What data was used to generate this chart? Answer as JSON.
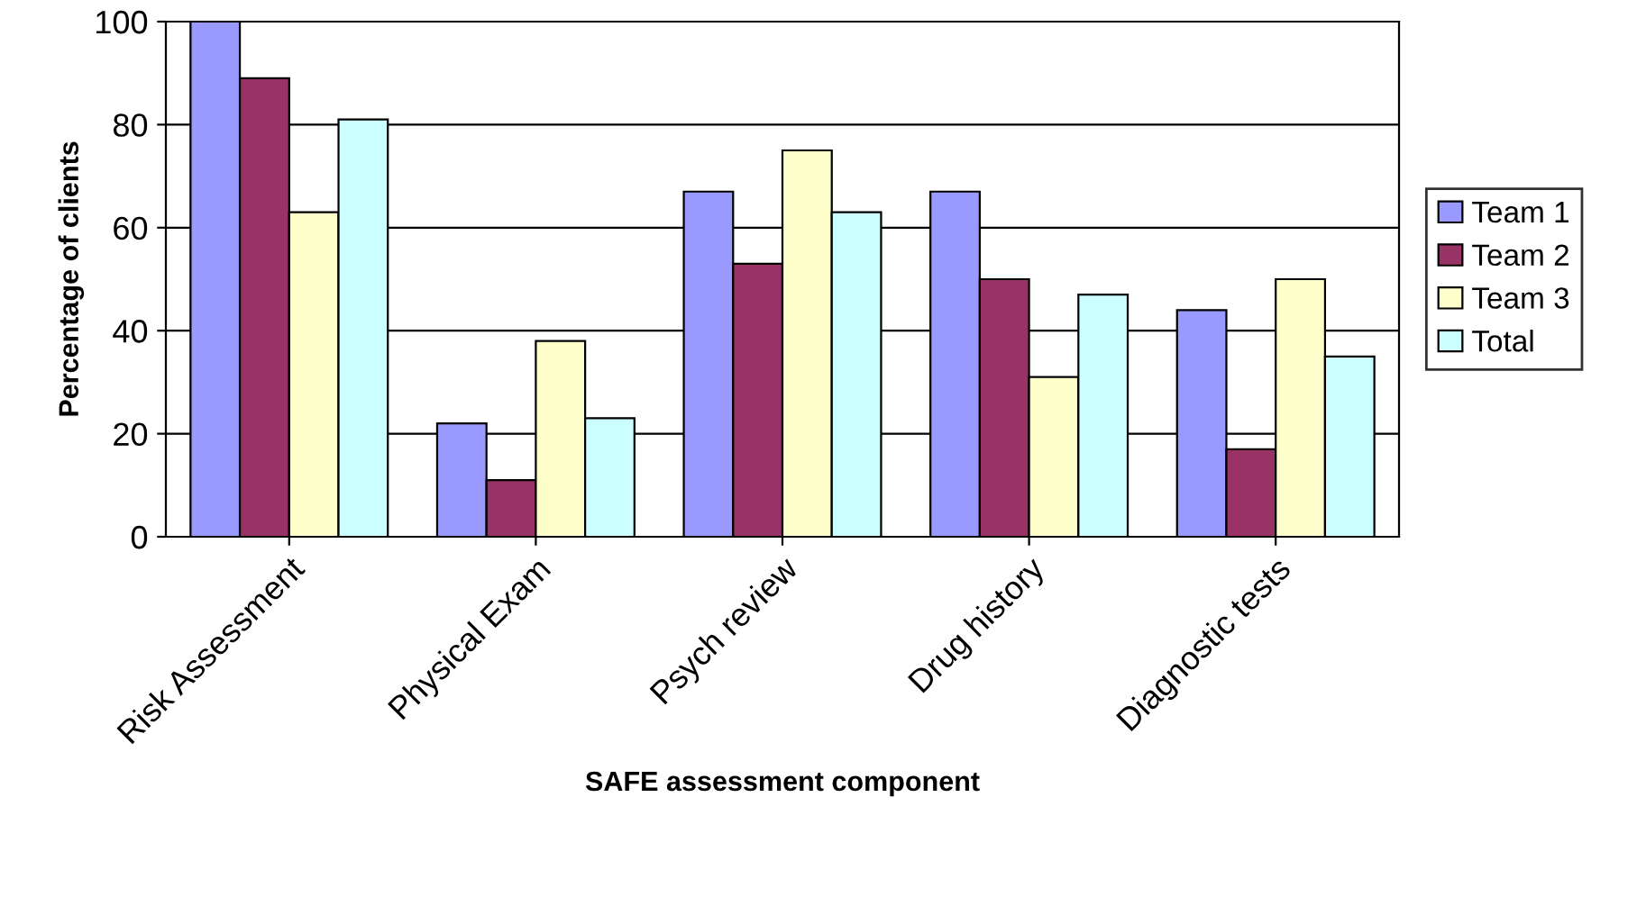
{
  "chart_data": {
    "type": "bar",
    "xlabel": "SAFE assessment component",
    "ylabel": "Percentage of clients",
    "categories": [
      "Risk Assessment",
      "Physical Exam",
      "Psych review",
      "Drug history",
      "Diagnostic tests"
    ],
    "series": [
      {
        "name": "Team 1",
        "color": "#9999ff",
        "values": [
          100,
          22,
          67,
          67,
          44
        ]
      },
      {
        "name": "Team 2",
        "color": "#993366",
        "values": [
          89,
          11,
          53,
          50,
          17
        ]
      },
      {
        "name": "Team 3",
        "color": "#ffffcc",
        "values": [
          63,
          38,
          75,
          31,
          50
        ]
      },
      {
        "name": "Total",
        "color": "#ccffff",
        "values": [
          81,
          23,
          63,
          47,
          35
        ]
      }
    ],
    "ylim": [
      0,
      100
    ],
    "yticks": [
      0,
      20,
      40,
      60,
      80,
      100
    ],
    "grid": "y",
    "legend": "right"
  }
}
